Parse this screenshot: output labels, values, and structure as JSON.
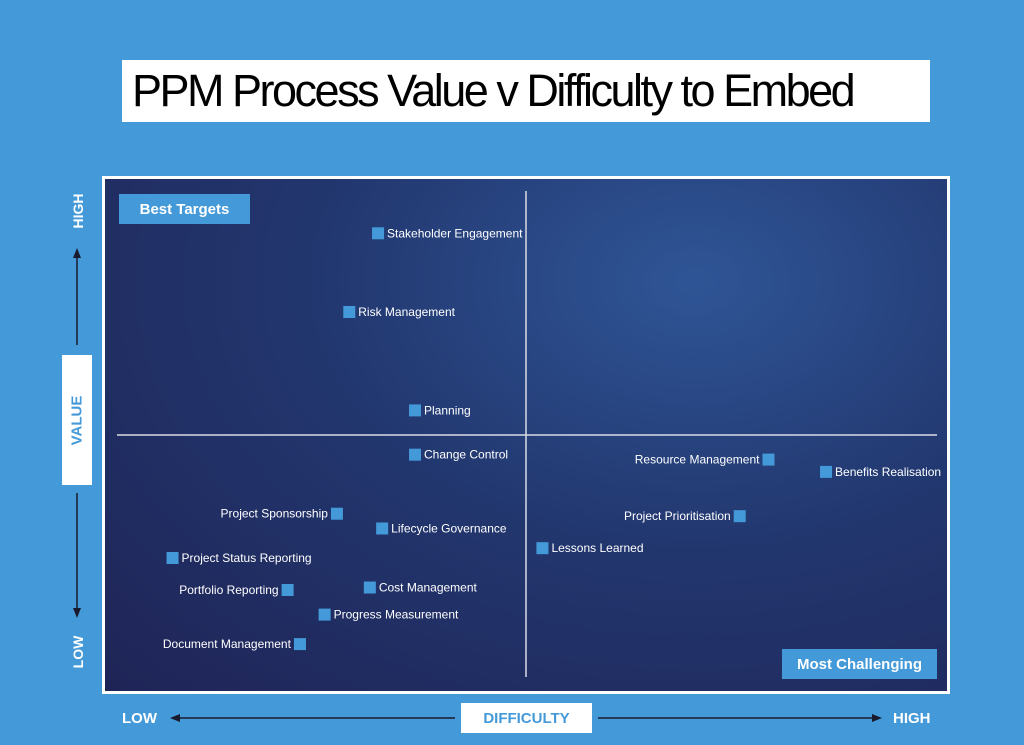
{
  "title": "PPM Process Value v  Difficulty to Embed",
  "colors": {
    "background": "#4499d8",
    "marker": "#4499d8",
    "plot_dark": "#22376f",
    "text_light": "#ffffff"
  },
  "quadrant_labels": {
    "top_left": "Best Targets",
    "bottom_right": "Most Challenging"
  },
  "axes": {
    "y_title": "VALUE",
    "y_high": "HIGH",
    "y_low": "LOW",
    "x_title": "DIFFICULTY",
    "x_low": "LOW",
    "x_high": "HIGH"
  },
  "chart_data": {
    "type": "scatter",
    "title": "PPM Process Value v  Difficulty to Embed",
    "xlabel": "DIFFICULTY",
    "ylabel": "VALUE",
    "xlim": [
      0,
      100
    ],
    "ylim": [
      0,
      100
    ],
    "quadrant_dividers": {
      "x": 50,
      "y": 50
    },
    "points": [
      {
        "label": "Stakeholder Engagement",
        "x": 32,
        "y": 91,
        "label_side": "right"
      },
      {
        "label": "Risk Management",
        "x": 28.5,
        "y": 75,
        "label_side": "right"
      },
      {
        "label": "Planning",
        "x": 36.5,
        "y": 55,
        "label_side": "right"
      },
      {
        "label": "Change Control",
        "x": 36.5,
        "y": 46,
        "label_side": "right"
      },
      {
        "label": "Resource Management",
        "x": 79.5,
        "y": 45,
        "label_side": "left"
      },
      {
        "label": "Benefits Realisation",
        "x": 86.5,
        "y": 42.5,
        "label_side": "right"
      },
      {
        "label": "Project Sponsorship",
        "x": 27,
        "y": 34,
        "label_side": "left"
      },
      {
        "label": "Project Prioritisation",
        "x": 76,
        "y": 33.5,
        "label_side": "left"
      },
      {
        "label": "Lifecycle Governance",
        "x": 32.5,
        "y": 31,
        "label_side": "right"
      },
      {
        "label": "Lessons Learned",
        "x": 52,
        "y": 27,
        "label_side": "right"
      },
      {
        "label": "Project Status Reporting",
        "x": 7,
        "y": 25,
        "label_side": "right"
      },
      {
        "label": "Portfolio Reporting",
        "x": 21,
        "y": 18.5,
        "label_side": "left"
      },
      {
        "label": "Cost Management",
        "x": 31,
        "y": 19,
        "label_side": "right"
      },
      {
        "label": "Progress Measurement",
        "x": 25.5,
        "y": 13.5,
        "label_side": "right"
      },
      {
        "label": "Document Management",
        "x": 22.5,
        "y": 7.5,
        "label_side": "left"
      }
    ]
  }
}
